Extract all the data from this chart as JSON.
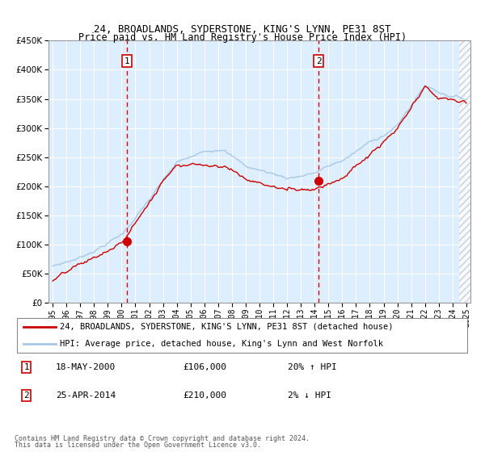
{
  "title1": "24, BROADLANDS, SYDERSTONE, KING'S LYNN, PE31 8ST",
  "title2": "Price paid vs. HM Land Registry's House Price Index (HPI)",
  "legend_label1": "24, BROADLANDS, SYDERSTONE, KING'S LYNN, PE31 8ST (detached house)",
  "legend_label2": "HPI: Average price, detached house, King's Lynn and West Norfolk",
  "annotation1_date": "18-MAY-2000",
  "annotation1_price": "£106,000",
  "annotation1_hpi": "20% ↑ HPI",
  "annotation1_year": 2000.37,
  "annotation1_value": 106000,
  "annotation2_date": "25-APR-2014",
  "annotation2_price": "£210,000",
  "annotation2_hpi": "2% ↓ HPI",
  "annotation2_year": 2014.29,
  "annotation2_value": 210000,
  "hpi_color": "#a8c8e8",
  "price_color": "#cc0000",
  "background_color": "#ddeeff",
  "grid_color": "#ffffff",
  "vline_color": "#dd0000",
  "xmin": 1995,
  "xmax": 2025,
  "ymin": 0,
  "ymax": 450000,
  "hatch_start": 2024.5,
  "footnote1": "Contains HM Land Registry data © Crown copyright and database right 2024.",
  "footnote2": "This data is licensed under the Open Government Licence v3.0."
}
